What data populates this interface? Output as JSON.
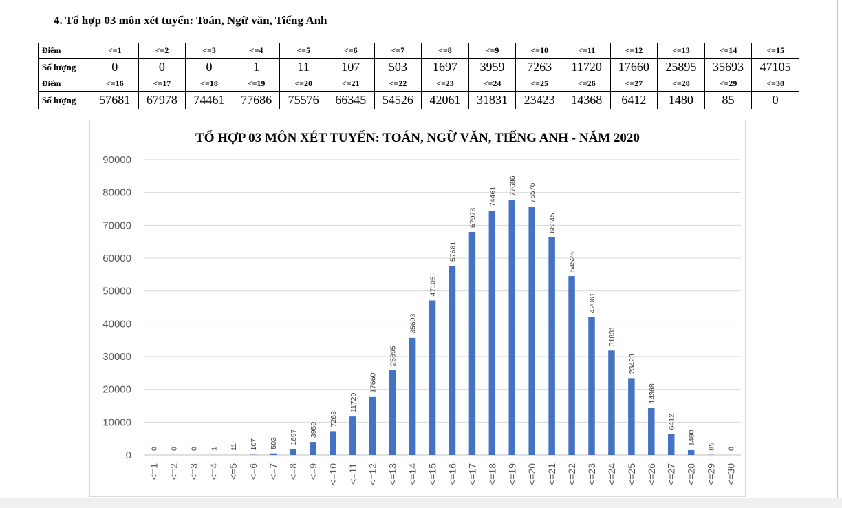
{
  "heading": "4. Tổ hợp 03 môn xét tuyển: Toán, Ngữ văn, Tiếng Anh",
  "table": {
    "score_label": "Điểm",
    "count_label": "Số lượng",
    "rows": [
      {
        "scores": [
          "<=1",
          "<=2",
          "<=3",
          "<=4",
          "<=5",
          "<=6",
          "<=7",
          "<=8",
          "<=9",
          "<=10",
          "<=11",
          "<=12",
          "<=13",
          "<=14",
          "<=15"
        ],
        "counts": [
          "0",
          "0",
          "0",
          "1",
          "11",
          "107",
          "503",
          "1697",
          "3959",
          "7263",
          "11720",
          "17660",
          "25895",
          "35693",
          "47105"
        ]
      },
      {
        "scores": [
          "<=16",
          "<=17",
          "<=18",
          "<=19",
          "<=20",
          "<=21",
          "<=22",
          "<=23",
          "<=24",
          "<=25",
          "<=26",
          "<=27",
          "<=28",
          "<=29",
          "<=30"
        ],
        "counts": [
          "57681",
          "67978",
          "74461",
          "77686",
          "75576",
          "66345",
          "54526",
          "42061",
          "31831",
          "23423",
          "14368",
          "6412",
          "1480",
          "85",
          "0"
        ]
      }
    ]
  },
  "chart_data": {
    "type": "bar",
    "title": "TỔ HỢP 03 MÔN XÉT TUYỂN: TOÁN, NGỮ VĂN, TIẾNG ANH - NĂM 2020",
    "categories": [
      "<=1",
      "<=2",
      "<=3",
      "<=4",
      "<=5",
      "<=6",
      "<=7",
      "<=8",
      "<=9",
      "<=10",
      "<=11",
      "<=12",
      "<=13",
      "<=14",
      "<=15",
      "<=16",
      "<=17",
      "<=18",
      "<=19",
      "<=20",
      "<=21",
      "<=22",
      "<=23",
      "<=24",
      "<=25",
      "<=26",
      "<=27",
      "<=28",
      "<=29",
      "<=30"
    ],
    "values": [
      0,
      0,
      0,
      1,
      11,
      107,
      503,
      1697,
      3959,
      7263,
      11720,
      17660,
      25895,
      35693,
      47105,
      57681,
      67978,
      74461,
      77686,
      75576,
      66345,
      54526,
      42061,
      31831,
      23423,
      14368,
      6412,
      1480,
      85,
      0
    ],
    "y_ticks": [
      0,
      10000,
      20000,
      30000,
      40000,
      50000,
      60000,
      70000,
      80000,
      90000
    ],
    "ylim": [
      0,
      90000
    ],
    "xlabel": "",
    "ylabel": "",
    "grid": true,
    "legend": false,
    "data_labels": true,
    "bar_color": "#4472c4",
    "grid_color": "#d9d9d9",
    "label_color": "#404040"
  }
}
